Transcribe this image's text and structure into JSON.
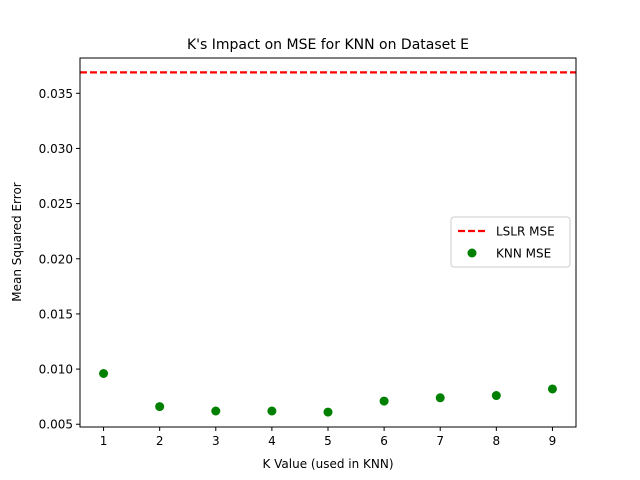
{
  "chart_data": {
    "type": "scatter",
    "title": "K's Impact on MSE for KNN on Dataset E",
    "xlabel": "K Value (used in KNN)",
    "ylabel": "Mean Squared Error",
    "xlim": [
      0.58,
      9.42
    ],
    "ylim": [
      0.00475,
      0.0382
    ],
    "xticks": [
      1,
      2,
      3,
      4,
      5,
      6,
      7,
      8,
      9
    ],
    "yticks": [
      0.005,
      0.01,
      0.015,
      0.02,
      0.025,
      0.03,
      0.035
    ],
    "ytick_labels": [
      "0.005",
      "0.010",
      "0.015",
      "0.020",
      "0.025",
      "0.030",
      "0.035"
    ],
    "grid": false,
    "legend_position": "center-right",
    "series": [
      {
        "name": "LSLR MSE",
        "kind": "hline",
        "y": 0.0369,
        "color": "#ff0000",
        "linestyle": "dashed"
      },
      {
        "name": "KNN MSE",
        "kind": "scatter",
        "color": "#008000",
        "x": [
          1,
          2,
          3,
          4,
          5,
          6,
          7,
          8,
          9
        ],
        "y": [
          0.0096,
          0.0066,
          0.0062,
          0.0062,
          0.0061,
          0.0071,
          0.0074,
          0.0076,
          0.0082
        ]
      }
    ]
  }
}
